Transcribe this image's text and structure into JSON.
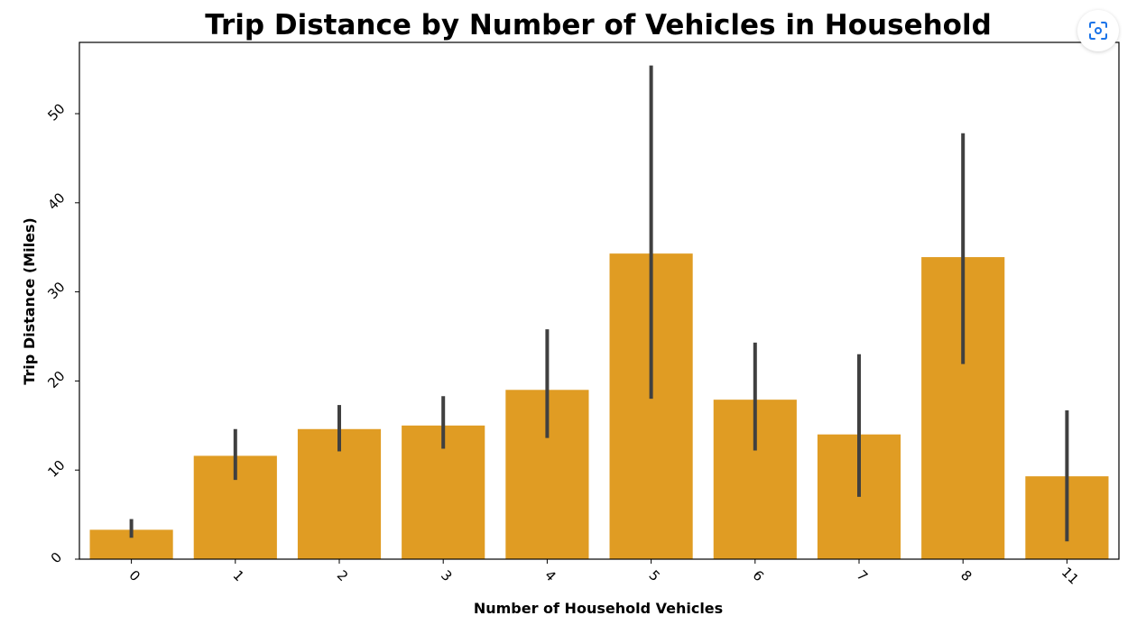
{
  "chart_data": {
    "type": "bar",
    "title": "Trip Distance by Number of Vehicles in Household",
    "xlabel": "Number of Household Vehicles",
    "ylabel": "Trip Distance (Miles)",
    "categories": [
      "0",
      "1",
      "2",
      "3",
      "4",
      "5",
      "6",
      "7",
      "8",
      "11"
    ],
    "values": [
      3.3,
      11.6,
      14.6,
      15.0,
      19.0,
      34.3,
      17.9,
      14.0,
      33.9,
      9.3
    ],
    "error_low": [
      2.4,
      8.9,
      12.1,
      12.4,
      13.6,
      18.0,
      12.2,
      7.0,
      21.9,
      2.0
    ],
    "error_high": [
      4.5,
      14.6,
      17.3,
      18.3,
      25.8,
      55.4,
      24.3,
      23.0,
      47.8,
      16.7
    ],
    "ylim": [
      0,
      58
    ],
    "yticks": [
      0,
      10,
      20,
      30,
      40,
      50
    ],
    "bar_color": "#E09C23",
    "error_color": "#404040",
    "grid": false
  },
  "controls": {
    "scan_icon": "scan-icon"
  }
}
